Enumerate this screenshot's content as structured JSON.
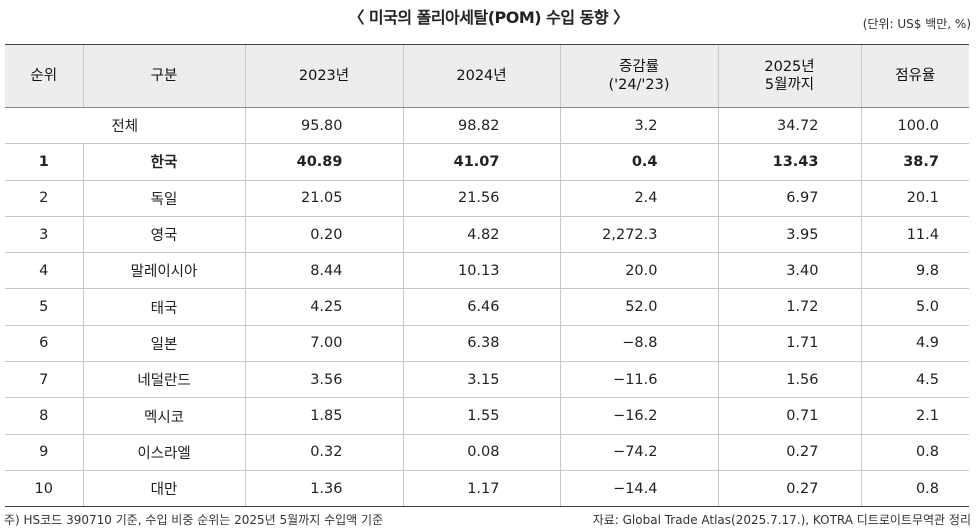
{
  "title": "〈 미국의 폴리아세탈(POM) 수입 동향 〉",
  "unit": "(단위: US$ 백만, %)",
  "headers": {
    "rank": "순위",
    "category": "구분",
    "y2023": "2023년",
    "y2024": "2024년",
    "growth_1": "증감률",
    "growth_2": "('24/'23)",
    "y2025_1": "2025년",
    "y2025_2": "5월까지",
    "share": "점유율"
  },
  "total": {
    "label": "전체",
    "y2023": "95.80",
    "y2024": "98.82",
    "growth": "3.2",
    "y2025": "34.72",
    "share": "100.0"
  },
  "rows": [
    {
      "rank": "1",
      "country": "한국",
      "y2023": "40.89",
      "y2024": "41.07",
      "growth": "0.4",
      "y2025": "13.43",
      "share": "38.7"
    },
    {
      "rank": "2",
      "country": "독일",
      "y2023": "21.05",
      "y2024": "21.56",
      "growth": "2.4",
      "y2025": "6.97",
      "share": "20.1"
    },
    {
      "rank": "3",
      "country": "영국",
      "y2023": "0.20",
      "y2024": "4.82",
      "growth": "2,272.3",
      "y2025": "3.95",
      "share": "11.4"
    },
    {
      "rank": "4",
      "country": "말레이시아",
      "y2023": "8.44",
      "y2024": "10.13",
      "growth": "20.0",
      "y2025": "3.40",
      "share": "9.8"
    },
    {
      "rank": "5",
      "country": "태국",
      "y2023": "4.25",
      "y2024": "6.46",
      "growth": "52.0",
      "y2025": "1.72",
      "share": "5.0"
    },
    {
      "rank": "6",
      "country": "일본",
      "y2023": "7.00",
      "y2024": "6.38",
      "growth": "−8.8",
      "y2025": "1.71",
      "share": "4.9"
    },
    {
      "rank": "7",
      "country": "네덜란드",
      "y2023": "3.56",
      "y2024": "3.15",
      "growth": "−11.6",
      "y2025": "1.56",
      "share": "4.5"
    },
    {
      "rank": "8",
      "country": "멕시코",
      "y2023": "1.85",
      "y2024": "1.55",
      "growth": "−16.2",
      "y2025": "0.71",
      "share": "2.1"
    },
    {
      "rank": "9",
      "country": "이스라엘",
      "y2023": "0.32",
      "y2024": "0.08",
      "growth": "−74.2",
      "y2025": "0.27",
      "share": "0.8"
    },
    {
      "rank": "10",
      "country": "대만",
      "y2023": "1.36",
      "y2024": "1.17",
      "growth": "−14.4",
      "y2025": "0.27",
      "share": "0.8"
    }
  ],
  "footnote": "주) HS코드 390710 기준, 수입 비중 순위는 2025년 5월까지 수입액 기준",
  "source": "자료: Global Trade Atlas(2025.7.17.), KOTRA 디트로이트무역관 정리"
}
